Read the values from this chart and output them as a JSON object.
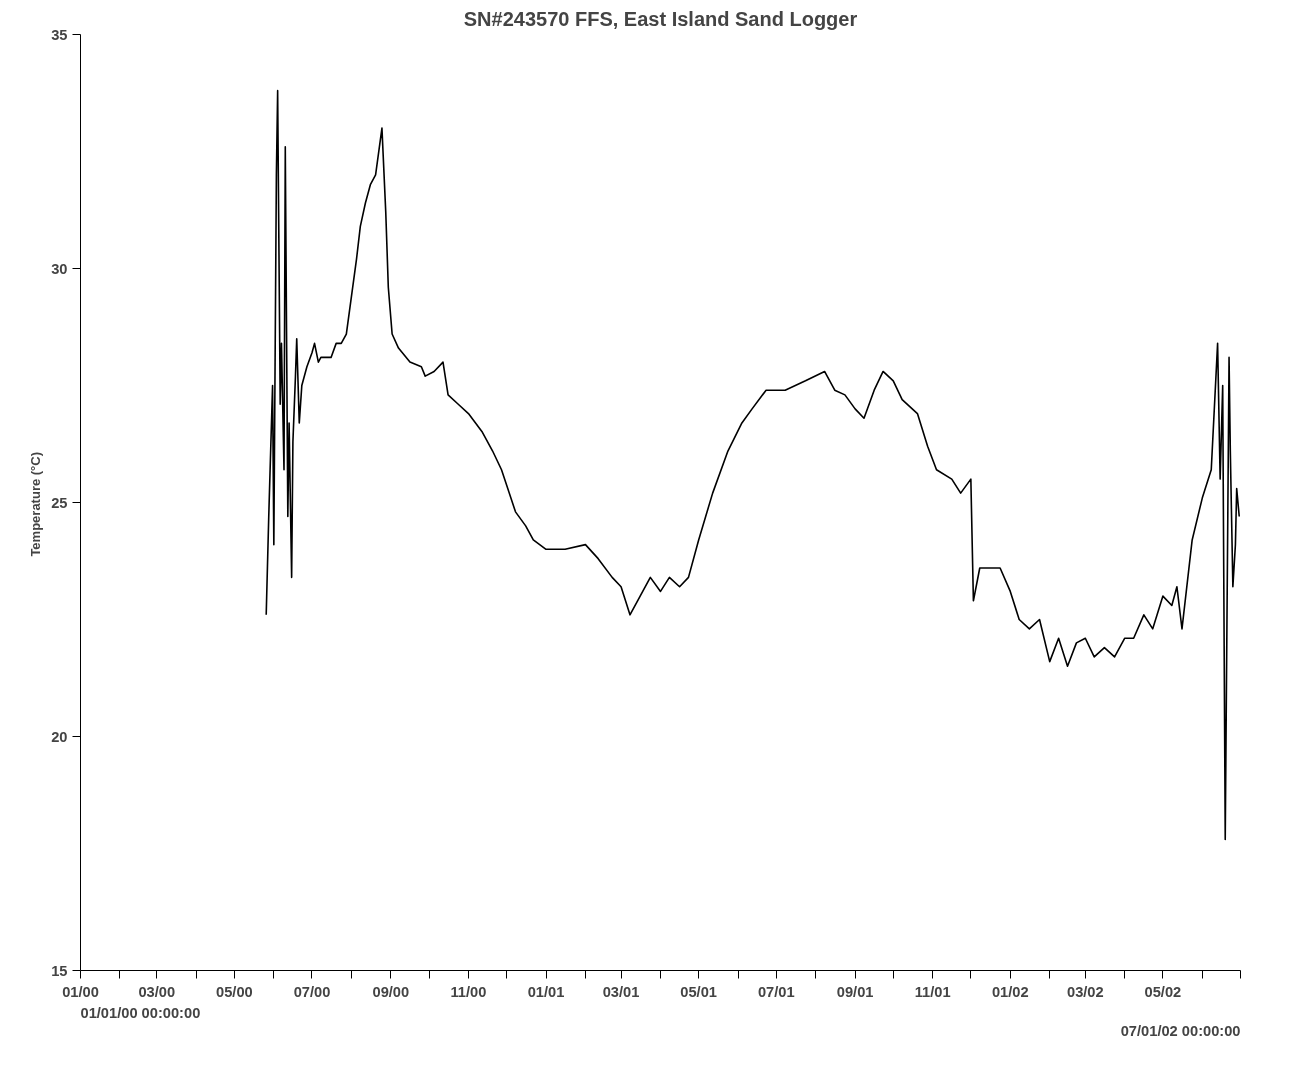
{
  "chart_data": {
    "type": "line",
    "title": "SN#243570 FFS, East Island Sand Logger",
    "ylabel": "Temperature  (°C)",
    "annotations": [
      "01/01/00 00:00:00",
      "07/01/02 00:00:00"
    ],
    "x": [
      "2000-05-26",
      "2000-05-28",
      "2000-05-31",
      "2000-06-01",
      "2000-06-03",
      "2000-06-04",
      "2000-06-06",
      "2000-06-07",
      "2000-06-09",
      "2000-06-10",
      "2000-06-12",
      "2000-06-13",
      "2000-06-15",
      "2000-06-16",
      "2000-06-18",
      "2000-06-19",
      "2000-06-21",
      "2000-06-23",
      "2000-06-27",
      "2000-07-01",
      "2000-07-03",
      "2000-07-06",
      "2000-07-08",
      "2000-07-16",
      "2000-07-20",
      "2000-07-24",
      "2000-07-28",
      "2000-08-01",
      "2000-08-05",
      "2000-08-08",
      "2000-08-12",
      "2000-08-16",
      "2000-08-20",
      "2000-08-25",
      "2000-08-28",
      "2000-08-30",
      "2000-09-02",
      "2000-09-07",
      "2000-09-16",
      "2000-09-25",
      "2000-09-28",
      "2000-10-05",
      "2000-10-12",
      "2000-10-16",
      "2000-10-24",
      "2000-11-01",
      "2000-11-12",
      "2000-11-20",
      "2000-11-27",
      "2000-12-08",
      "2000-12-16",
      "2000-12-22",
      "2001-01-01",
      "2001-01-16",
      "2001-02-01",
      "2001-02-11",
      "2001-02-22",
      "2001-03-01",
      "2001-03-08",
      "2001-03-16",
      "2001-03-24",
      "2001-04-01",
      "2001-04-08",
      "2001-04-16",
      "2001-04-23",
      "2001-05-01",
      "2001-05-12",
      "2001-05-24",
      "2001-06-04",
      "2001-06-12",
      "2001-06-23",
      "2001-07-08",
      "2001-07-24",
      "2001-08-08",
      "2001-08-16",
      "2001-08-24",
      "2001-09-01",
      "2001-09-08",
      "2001-09-16",
      "2001-09-23",
      "2001-10-01",
      "2001-10-08",
      "2001-10-20",
      "2001-10-28",
      "2001-11-04",
      "2001-11-16",
      "2001-11-23",
      "2001-12-01",
      "2001-12-03",
      "2001-12-08",
      "2001-12-24",
      "2002-01-01",
      "2002-01-08",
      "2002-01-16",
      "2002-01-24",
      "2002-02-01",
      "2002-02-08",
      "2002-02-15",
      "2002-02-22",
      "2002-03-01",
      "2002-03-08",
      "2002-03-16",
      "2002-03-24",
      "2002-04-01",
      "2002-04-08",
      "2002-04-16",
      "2002-04-23",
      "2002-05-01",
      "2002-05-08",
      "2002-05-12",
      "2002-05-16",
      "2002-05-24",
      "2002-06-01",
      "2002-06-08",
      "2002-06-13",
      "2002-06-15",
      "2002-06-17",
      "2002-06-19",
      "2002-06-22",
      "2002-06-23",
      "2002-06-25",
      "2002-06-27",
      "2002-06-28",
      "2002-06-30"
    ],
    "series": [
      {
        "color": "#000000",
        "values": [
          22.6,
          24.7,
          27.5,
          24.1,
          32.0,
          33.8,
          27.1,
          28.4,
          25.7,
          32.6,
          24.7,
          26.7,
          23.4,
          26.3,
          27.7,
          28.5,
          26.7,
          27.5,
          27.9,
          28.2,
          28.4,
          28.0,
          28.1,
          28.1,
          28.4,
          28.4,
          28.6,
          29.4,
          30.2,
          30.9,
          31.4,
          31.8,
          32.0,
          33.0,
          31.2,
          29.6,
          28.6,
          28.3,
          28.0,
          27.9,
          27.7,
          27.8,
          28.0,
          27.3,
          27.1,
          26.9,
          26.5,
          26.1,
          25.7,
          24.8,
          24.5,
          24.2,
          24.0,
          24.0,
          24.1,
          23.8,
          23.4,
          23.2,
          22.6,
          23.0,
          23.4,
          23.1,
          23.4,
          23.2,
          23.4,
          24.2,
          25.2,
          26.1,
          26.7,
          27.0,
          27.4,
          27.4,
          27.6,
          27.8,
          27.4,
          27.3,
          27.0,
          26.8,
          27.4,
          27.8,
          27.6,
          27.2,
          26.9,
          26.2,
          25.7,
          25.5,
          25.2,
          25.5,
          22.9,
          23.6,
          23.6,
          23.1,
          22.5,
          22.3,
          22.5,
          21.6,
          22.1,
          21.5,
          22.0,
          22.1,
          21.7,
          21.9,
          21.7,
          22.1,
          22.1,
          22.6,
          22.3,
          23.0,
          22.8,
          23.2,
          22.3,
          24.2,
          25.1,
          25.7,
          28.4,
          25.5,
          27.5,
          17.8,
          28.1,
          26.1,
          23.2,
          24.1,
          25.3,
          24.7
        ]
      }
    ],
    "xlim": [
      "2000-01-01",
      "2002-07-01"
    ],
    "xticks": [
      {
        "value": "2000-01-01",
        "label": "01/00"
      },
      {
        "value": "2000-02-01",
        "label": null
      },
      {
        "value": "2000-03-01",
        "label": "03/00"
      },
      {
        "value": "2000-04-01",
        "label": null
      },
      {
        "value": "2000-05-01",
        "label": "05/00"
      },
      {
        "value": "2000-06-01",
        "label": null
      },
      {
        "value": "2000-07-01",
        "label": "07/00"
      },
      {
        "value": "2000-08-01",
        "label": null
      },
      {
        "value": "2000-09-01",
        "label": "09/00"
      },
      {
        "value": "2000-10-01",
        "label": null
      },
      {
        "value": "2000-11-01",
        "label": "11/00"
      },
      {
        "value": "2000-12-01",
        "label": null
      },
      {
        "value": "2001-01-01",
        "label": "01/01"
      },
      {
        "value": "2001-02-01",
        "label": null
      },
      {
        "value": "2001-03-01",
        "label": "03/01"
      },
      {
        "value": "2001-04-01",
        "label": null
      },
      {
        "value": "2001-05-01",
        "label": "05/01"
      },
      {
        "value": "2001-06-01",
        "label": null
      },
      {
        "value": "2001-07-01",
        "label": "07/01"
      },
      {
        "value": "2001-08-01",
        "label": null
      },
      {
        "value": "2001-09-01",
        "label": "09/01"
      },
      {
        "value": "2001-10-01",
        "label": null
      },
      {
        "value": "2001-11-01",
        "label": "11/01"
      },
      {
        "value": "2001-12-01",
        "label": null
      },
      {
        "value": "2002-01-01",
        "label": "01/02"
      },
      {
        "value": "2002-02-01",
        "label": null
      },
      {
        "value": "2002-03-01",
        "label": "03/02"
      },
      {
        "value": "2002-04-01",
        "label": null
      },
      {
        "value": "2002-05-01",
        "label": "05/02"
      },
      {
        "value": "2002-06-01",
        "label": null
      },
      {
        "value": "2002-07-01",
        "label": null
      }
    ],
    "ylim": [
      15,
      35
    ],
    "yticks": [
      15,
      20,
      25,
      30,
      35
    ],
    "grid": false,
    "marker": "none",
    "line_style": "solid"
  }
}
